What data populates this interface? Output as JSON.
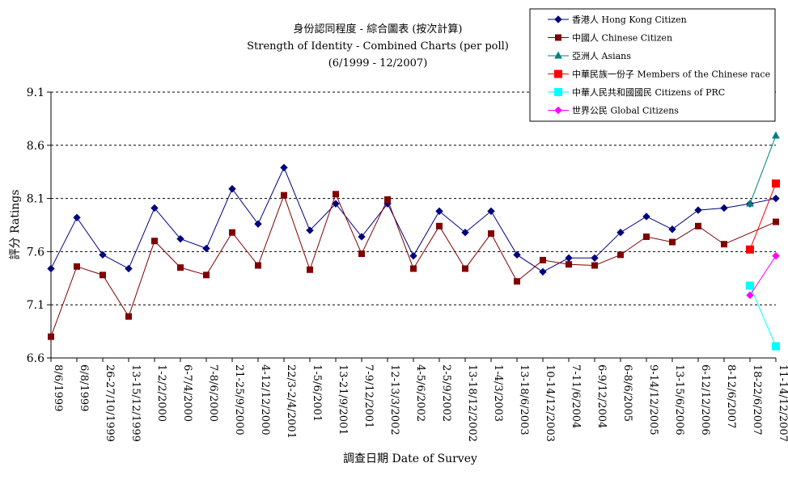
{
  "chart_data": {
    "type": "line",
    "title": "身份認同程度 - 綜合圖表 (按次計算)",
    "subtitle_lines": [
      "Strength of Identity - Combined Charts (per poll)",
      "(6/1999 - 12/2007)"
    ],
    "xlabel": "調查日期 Date of Survey",
    "ylabel": "評分 Ratings",
    "ylim": [
      6.6,
      9.1
    ],
    "yticks": [
      "9.1",
      "8.6",
      "8.1",
      "7.6",
      "7.1",
      "6.6"
    ],
    "grid": "horizontal dashed",
    "legend_position": "top-right",
    "categories": [
      "8/6/1999",
      "6/8/1999",
      "26-27/10/1999",
      "13-15/12/1999",
      "1-2/2/2000",
      "6-7/4/2000",
      "7-8/6/2000",
      "21-25/9/2000",
      "4-12/12/2000",
      "22/3-2/4/2001",
      "1-5/6/2001",
      "13-21/9/2001",
      "7-9/12/2001",
      "12-13/3/2002",
      "4-5/6/2002",
      "2-5/9/2002",
      "13-18/12/2002",
      "1-4/3/2003",
      "13-18/6/2003",
      "10-14/12/2003",
      "7-11/6/2004",
      "6-9/12/2004",
      "6-8/6/2005",
      "9-14/12/2005",
      "13-15/6/2006",
      "6-12/12/2006",
      "8-12/6/2007",
      "18-22/6/2007",
      "11-14/12/2007"
    ],
    "series": [
      {
        "name": "香港人 Hong Kong Citizen",
        "color": "#000080",
        "marker": "diamond",
        "values": [
          7.44,
          7.92,
          7.57,
          7.44,
          8.01,
          7.72,
          7.63,
          8.19,
          7.86,
          8.39,
          7.8,
          8.05,
          7.74,
          8.05,
          7.56,
          7.98,
          7.78,
          7.98,
          7.57,
          7.41,
          7.54,
          7.54,
          7.78,
          7.93,
          7.81,
          7.99,
          8.01,
          8.05,
          8.1
        ]
      },
      {
        "name": "中國人 Chinese Citizen",
        "color": "#800000",
        "marker": "square",
        "values": [
          6.8,
          7.46,
          7.38,
          6.99,
          7.7,
          7.45,
          7.38,
          7.78,
          7.47,
          8.13,
          7.43,
          8.14,
          7.58,
          8.09,
          7.44,
          7.84,
          7.44,
          7.77,
          7.32,
          7.52,
          7.48,
          7.47,
          7.57,
          7.74,
          7.69,
          7.84,
          7.67,
          null,
          7.88
        ]
      },
      {
        "name": "亞洲人 Asians",
        "color": "#008080",
        "marker": "triangle",
        "values": [
          null,
          null,
          null,
          null,
          null,
          null,
          null,
          null,
          null,
          null,
          null,
          null,
          null,
          null,
          null,
          null,
          null,
          null,
          null,
          null,
          null,
          null,
          null,
          null,
          null,
          null,
          null,
          8.05,
          8.69
        ]
      },
      {
        "name": "中華民族一份子 Members of the Chinese race",
        "color": "#ff0000",
        "marker": "square",
        "values": [
          null,
          null,
          null,
          null,
          null,
          null,
          null,
          null,
          null,
          null,
          null,
          null,
          null,
          null,
          null,
          null,
          null,
          null,
          null,
          null,
          null,
          null,
          null,
          null,
          null,
          null,
          null,
          7.62,
          8.24
        ]
      },
      {
        "name": "中華人民共和國國民 Citizens of PRC",
        "color": "#00ffff",
        "marker": "square",
        "values": [
          null,
          null,
          null,
          null,
          null,
          null,
          null,
          null,
          null,
          null,
          null,
          null,
          null,
          null,
          null,
          null,
          null,
          null,
          null,
          null,
          null,
          null,
          null,
          null,
          null,
          null,
          null,
          7.28,
          6.71
        ]
      },
      {
        "name": "世界公民 Global Citizens",
        "color": "#ff00ff",
        "marker": "diamond",
        "values": [
          null,
          null,
          null,
          null,
          null,
          null,
          null,
          null,
          null,
          null,
          null,
          null,
          null,
          null,
          null,
          null,
          null,
          null,
          null,
          null,
          null,
          null,
          null,
          null,
          null,
          null,
          null,
          7.19,
          7.56
        ]
      }
    ]
  }
}
